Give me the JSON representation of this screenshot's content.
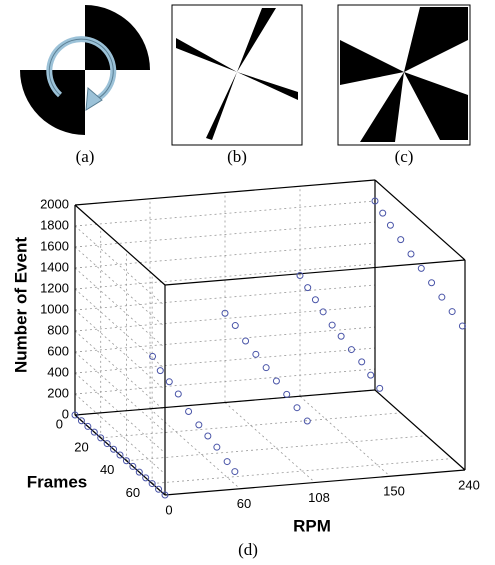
{
  "captions": [
    "(a)",
    "(b)",
    "(c)",
    "(d)"
  ],
  "chart_data": {
    "type": "scatter3d",
    "xlabel": "RPM",
    "ylabel": "Frames",
    "zlabel": "Number of Event",
    "categories": [
      "0",
      "60",
      "108",
      "150",
      "240"
    ],
    "ylim": [
      0,
      70
    ],
    "yticks": [
      0,
      20,
      40,
      60
    ],
    "zlim": [
      0,
      2000
    ],
    "zticks": [
      0,
      200,
      400,
      600,
      800,
      1000,
      1200,
      1400,
      1600,
      1800,
      2000
    ],
    "grid": true,
    "color": "#4a55a8",
    "x": [
      "0",
      "0",
      "0",
      "0",
      "0",
      "0",
      "0",
      "0",
      "0",
      "0",
      "0",
      "0",
      "0",
      "0",
      "0",
      "60",
      "60",
      "60",
      "60",
      "60",
      "60",
      "60",
      "60",
      "60",
      "60",
      "108",
      "108",
      "108",
      "108",
      "108",
      "108",
      "108",
      "108",
      "108",
      "150",
      "150",
      "150",
      "150",
      "150",
      "150",
      "150",
      "150",
      "150",
      "150",
      "240",
      "240",
      "240",
      "240",
      "240",
      "240",
      "240",
      "240",
      "240",
      "240"
    ],
    "y": [
      0,
      5,
      10,
      15,
      20,
      25,
      30,
      35,
      40,
      45,
      50,
      55,
      60,
      65,
      70,
      2,
      8,
      15,
      22,
      30,
      38,
      45,
      52,
      60,
      66,
      0,
      8,
      16,
      24,
      32,
      40,
      48,
      56,
      64,
      0,
      6,
      12,
      18,
      25,
      32,
      40,
      48,
      55,
      62,
      0,
      6,
      12,
      20,
      28,
      36,
      44,
      52,
      60,
      68
    ],
    "z": [
      0,
      0,
      0,
      0,
      0,
      0,
      0,
      0,
      0,
      0,
      0,
      0,
      0,
      0,
      0,
      520,
      450,
      420,
      380,
      300,
      260,
      230,
      200,
      150,
      120,
      850,
      820,
      760,
      720,
      680,
      640,
      600,
      560,
      520,
      1150,
      1100,
      1050,
      1000,
      950,
      920,
      880,
      850,
      800,
      750,
      1800,
      1750,
      1700,
      1650,
      1600,
      1550,
      1500,
      1450,
      1400,
      1350
    ]
  }
}
